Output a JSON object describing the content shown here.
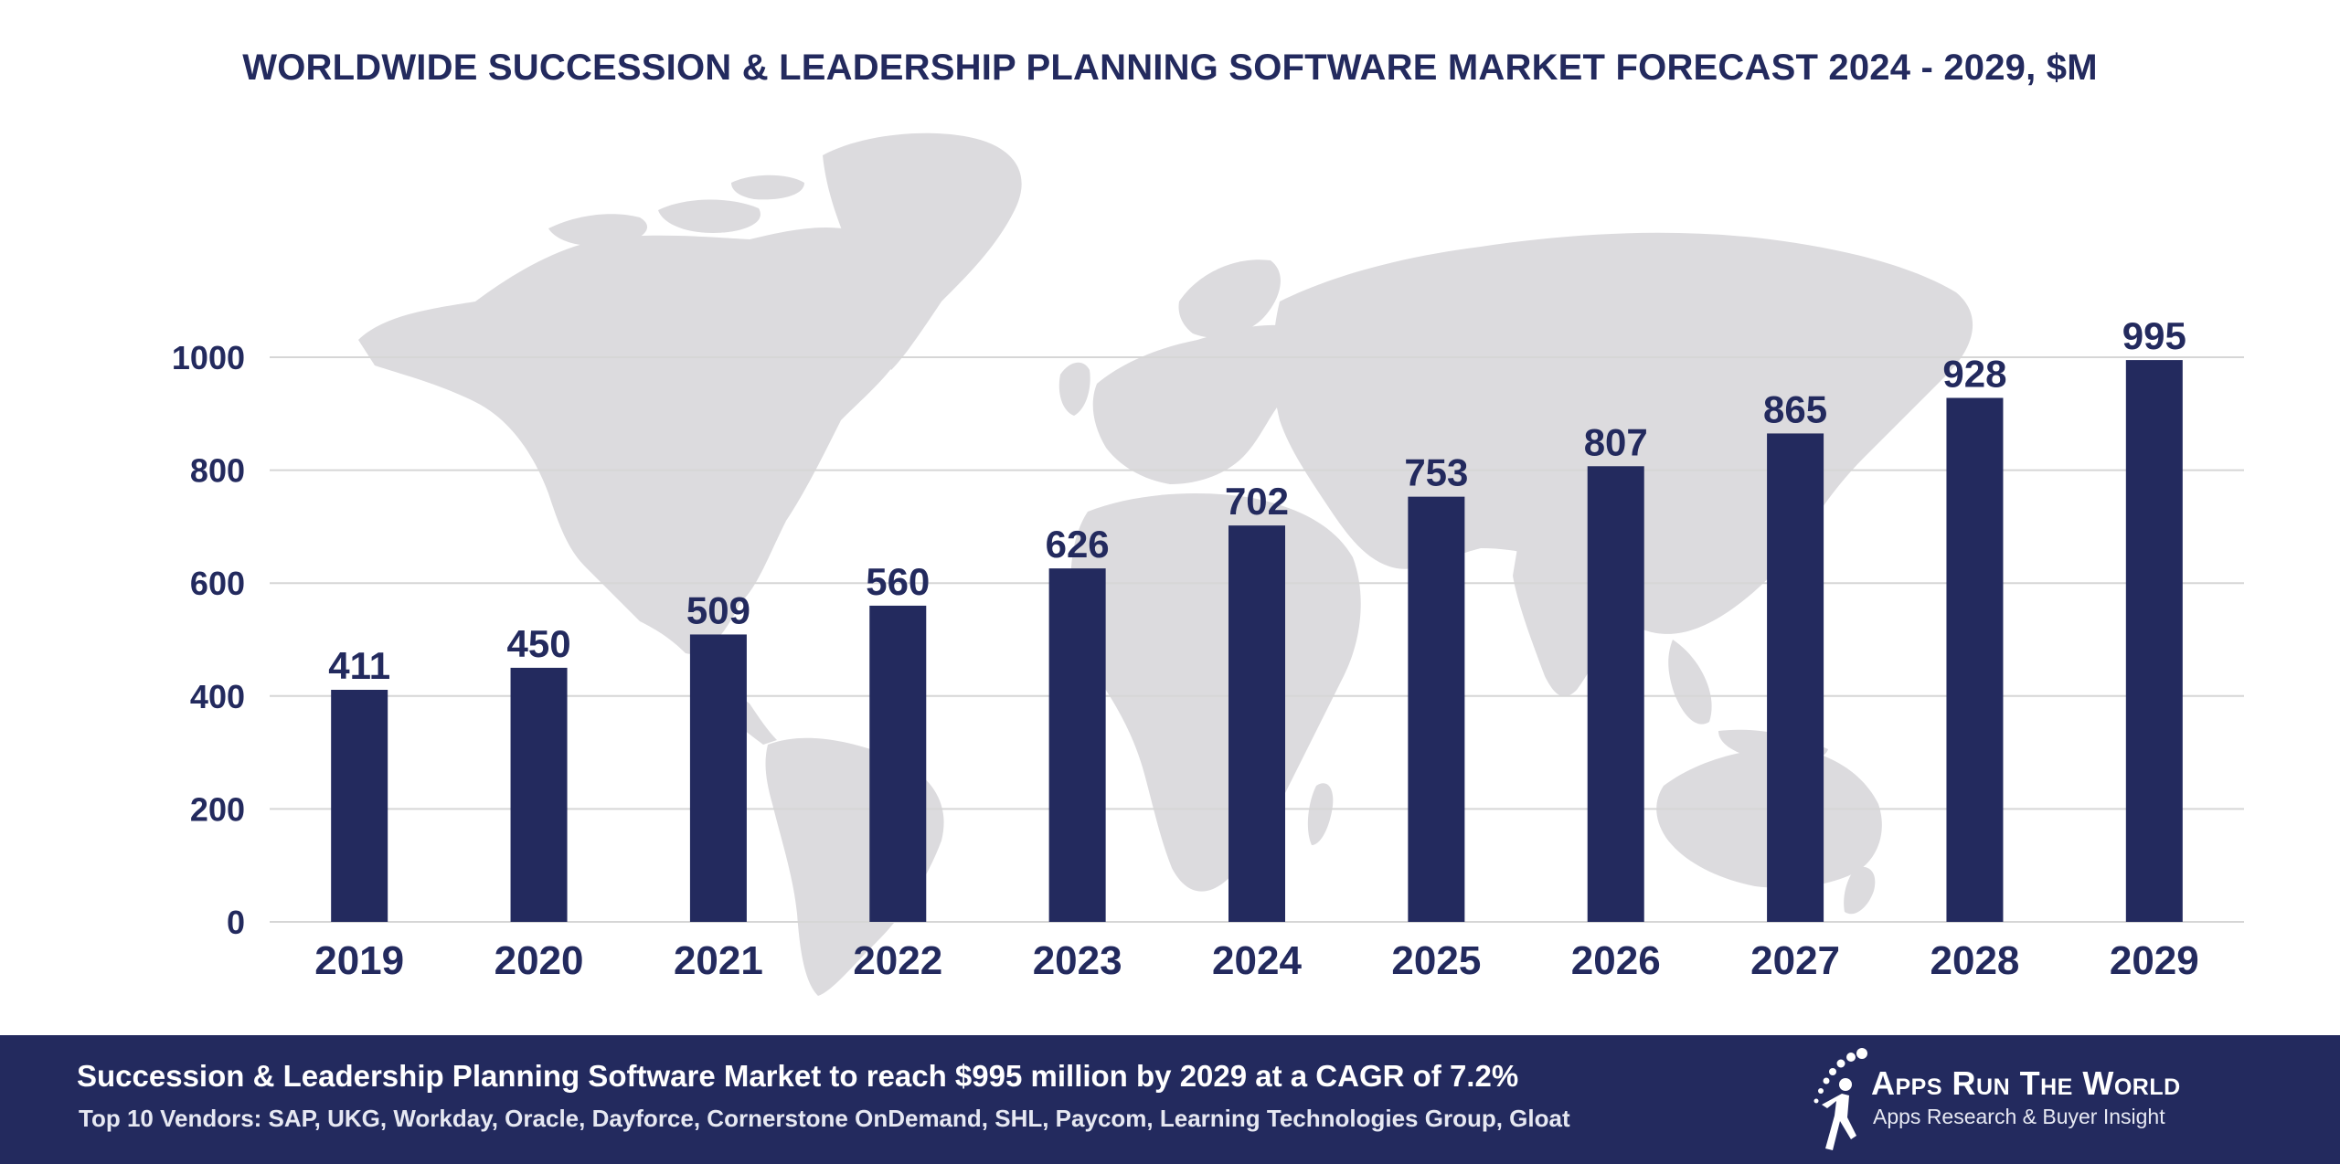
{
  "chart_data": {
    "type": "bar",
    "title": "WORLDWIDE SUCCESSION & LEADERSHIP PLANNING SOFTWARE MARKET FORECAST 2024 - 2029, $M",
    "categories": [
      "2019",
      "2020",
      "2021",
      "2022",
      "2023",
      "2024",
      "2025",
      "2026",
      "2027",
      "2028",
      "2029"
    ],
    "values": [
      411,
      450,
      509,
      560,
      626,
      702,
      753,
      807,
      865,
      928,
      995
    ],
    "ylim": [
      0,
      1000
    ],
    "yticks": [
      0,
      200,
      400,
      600,
      800,
      1000
    ],
    "xlabel": "",
    "ylabel": "",
    "grid": true,
    "legend": "none",
    "bar_color": "#232a5e",
    "grid_color": "#d6d6d6",
    "map_color": "#dcdbde"
  },
  "footer": {
    "headline": "Succession & Leadership Planning Software Market to reach $995 million by 2029 at a CAGR of 7.2%",
    "vendors": "Top 10 Vendors: SAP, UKG, Workday, Oracle, Dayforce, Cornerstone OnDemand, SHL, Paycom, Learning Technologies Group, Gloat",
    "background_color": "#232a5e"
  },
  "logo": {
    "brand": "Apps Run The World",
    "tagline": "Apps Research & Buyer Insight",
    "icon": "running-figure-icon"
  }
}
